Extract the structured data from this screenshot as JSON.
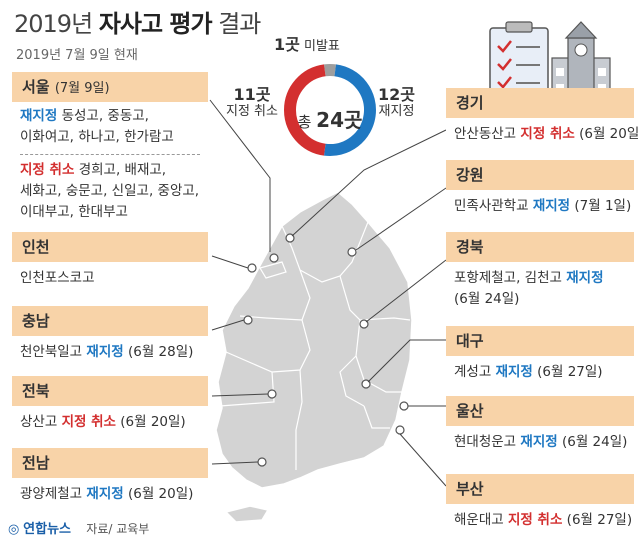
{
  "title_prefix": "2019년",
  "title_bold": "자사고 평가",
  "title_suffix": "결과",
  "subtitle": "2019년 7월 9일 현재",
  "summary": {
    "total_prefix": "총",
    "total_value": "24곳",
    "unevaluated_count": "1곳",
    "unevaluated_label": "미발표",
    "cancel_count": "11곳",
    "cancel_label": "지정 취소",
    "keep_count": "12곳",
    "keep_label": "재지정",
    "values": {
      "keep": 12,
      "cancel": 11,
      "unevaluated": 1
    },
    "colors": {
      "keep": "#1f78c2",
      "cancel": "#d32f2f",
      "unevaluated": "#9e9e9e"
    }
  },
  "regions": {
    "seoul": {
      "name": "서울",
      "date": "(7월 9일)",
      "keep_label": "재지정",
      "keep_schools_1": "동성고, 중동고,",
      "keep_schools_2": "이화여고, 하나고, 한가람고",
      "cancel_label": "지정 취소",
      "cancel_schools_1": "경희고, 배재고,",
      "cancel_schools_2": "세화고, 숭문고, 신일고, 중앙고,",
      "cancel_schools_3": "이대부고, 한대부고"
    },
    "incheon": {
      "name": "인천",
      "school": "인천포스코고"
    },
    "chungnam": {
      "name": "충남",
      "school": "천안북일고",
      "result": "재지정",
      "date": "(6월 28일)"
    },
    "jeonbuk": {
      "name": "전북",
      "school": "상산고",
      "result": "지정 취소",
      "date": "(6월 20일)"
    },
    "jeonnam": {
      "name": "전남",
      "school": "광양제철고",
      "result": "재지정",
      "date": "(6월 20일)"
    },
    "gyeonggi": {
      "name": "경기",
      "school": "안산동산고",
      "result": "지정 취소",
      "date": "(6월 20일)"
    },
    "gangwon": {
      "name": "강원",
      "school": "민족사관학교",
      "result": "재지정",
      "date": "(7월 1일)"
    },
    "gyeongbuk": {
      "name": "경북",
      "school": "포항제철고, 김천고",
      "result": "재지정",
      "date": "(6월 24일)"
    },
    "daegu": {
      "name": "대구",
      "school": "계성고",
      "result": "재지정",
      "date": "(6월 27일)"
    },
    "ulsan": {
      "name": "울산",
      "school": "현대청운고",
      "result": "재지정",
      "date": "(6월 24일)"
    },
    "busan": {
      "name": "부산",
      "school": "해운대고",
      "result": "지정 취소",
      "date": "(6월 27일)"
    }
  },
  "footer": {
    "logo": "연합뉴스",
    "source": "자료/ 교육부"
  },
  "icons": [
    "checklist-icon",
    "school-building-icon",
    "news-logo-icon"
  ]
}
